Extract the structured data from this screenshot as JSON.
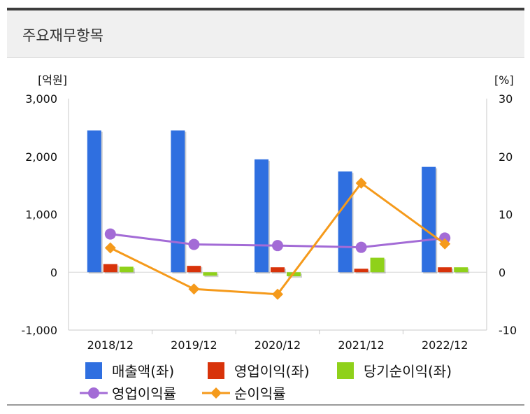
{
  "header": {
    "title": "주요재무항목"
  },
  "chart_data": {
    "type": "bar",
    "categories": [
      "2018/12",
      "2019/12",
      "2020/12",
      "2021/12",
      "2022/12"
    ],
    "series": [
      {
        "name": "매출액(좌)",
        "kind": "bar",
        "axis": "left",
        "color": "#2f6fe0",
        "values": [
          2450,
          2450,
          1950,
          1740,
          1820
        ]
      },
      {
        "name": "영업이익(좌)",
        "kind": "bar",
        "axis": "left",
        "color": "#d8330a",
        "values": [
          140,
          110,
          85,
          60,
          85
        ]
      },
      {
        "name": "당기순이익(좌)",
        "kind": "bar",
        "axis": "left",
        "color": "#8fd11a",
        "values": [
          95,
          -60,
          -70,
          250,
          85
        ]
      },
      {
        "name": "영업이익률",
        "kind": "line",
        "axis": "right",
        "color": "#a36bd6",
        "marker": "circle",
        "values": [
          6.6,
          4.8,
          4.6,
          4.3,
          5.9
        ]
      },
      {
        "name": "순이익률",
        "kind": "line",
        "axis": "right",
        "color": "#f59a1b",
        "marker": "diamond",
        "values": [
          4.2,
          -2.9,
          -3.8,
          15.4,
          4.9
        ]
      }
    ],
    "left_axis": {
      "unit": "[억원]",
      "min": -1000,
      "max": 3000,
      "ticks": [
        -1000,
        0,
        1000,
        2000,
        3000
      ],
      "tick_labels": [
        "-1,000",
        "0",
        "1,000",
        "2,000",
        "3,000"
      ]
    },
    "right_axis": {
      "unit": "[%]",
      "min": -10,
      "max": 30,
      "ticks": [
        -10,
        0,
        10,
        20,
        30
      ],
      "tick_labels": [
        "-10",
        "0",
        "10",
        "20",
        "30"
      ]
    },
    "grid": false,
    "legend_position": "bottom"
  }
}
